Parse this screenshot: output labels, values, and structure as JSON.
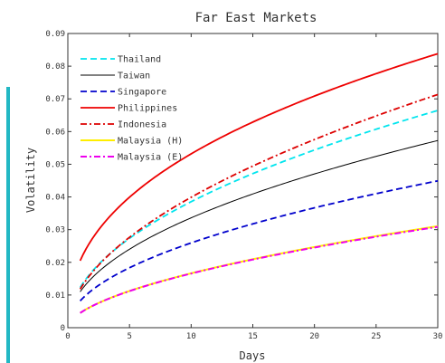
{
  "chart_data": {
    "type": "line",
    "title": "Far East Markets",
    "xlabel": "Days",
    "ylabel": "Volatility",
    "xlim": [
      0,
      30
    ],
    "ylim": [
      0,
      0.09
    ],
    "xticks": [
      "0",
      "5",
      "10",
      "15",
      "20",
      "25",
      "30"
    ],
    "yticks": [
      "0",
      "0.01",
      "0.02",
      "0.03",
      "0.04",
      "0.05",
      "0.06",
      "0.07",
      "0.08",
      "0.09"
    ],
    "grid": false,
    "legend_position": "top-left",
    "series": [
      {
        "name": "Thailand",
        "color": "#00e5ee",
        "dash": "dashed",
        "a": 0.0123
      },
      {
        "name": "Taiwan",
        "color": "#000000",
        "dash": "solid",
        "a": 0.011
      },
      {
        "name": "Singapore",
        "color": "#0000cc",
        "dash": "dashed",
        "a": 0.0082
      },
      {
        "name": "Philippines",
        "color": "#ee0000",
        "dash": "solid",
        "a": 0.0205
      },
      {
        "name": "Indonesia",
        "color": "#dd0000",
        "dash": "dashdot",
        "a": 0.0118
      },
      {
        "name": "Malaysia (H)",
        "color": "#ffee00",
        "dash": "solid",
        "a": 0.0045
      },
      {
        "name": "Malaysia (E)",
        "color": "#ee00ee",
        "dash": "dashdot",
        "a": 0.0045
      }
    ],
    "x_range": [
      1,
      30
    ],
    "exponents": {
      "Thailand": 0.496,
      "Taiwan": 0.485,
      "Singapore": 0.5,
      "Philippines": 0.414,
      "Indonesia": 0.529,
      "Malaysia (H)": 0.568,
      "Malaysia (E)": 0.566
    }
  }
}
